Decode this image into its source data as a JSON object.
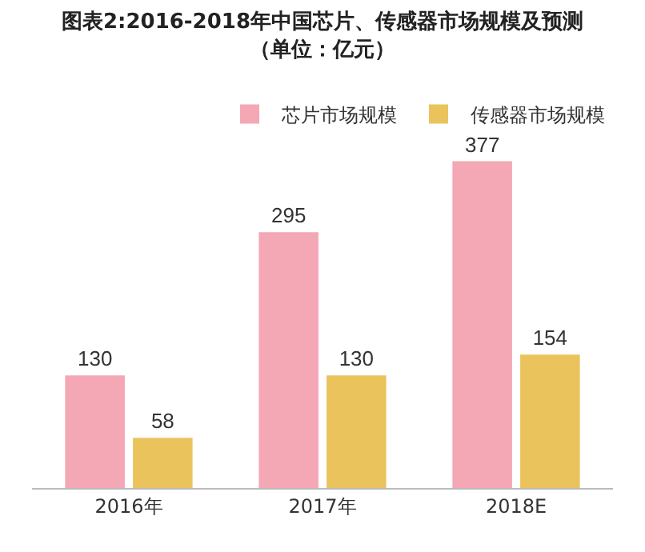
{
  "chart_data": {
    "type": "bar",
    "title": "图表2:2016-2018年中国芯片、传感器市场规模及预测",
    "subtitle": "（单位：亿元）",
    "categories": [
      "2016年",
      "2017年",
      "2018E"
    ],
    "series": [
      {
        "name": "芯片市场规模",
        "color": "#f4a7b4",
        "values": [
          130,
          295,
          377
        ]
      },
      {
        "name": "传感器市场规模",
        "color": "#eac35c",
        "values": [
          58,
          130,
          154
        ]
      }
    ],
    "data_labels": true,
    "legend": "top right",
    "grid": false
  }
}
